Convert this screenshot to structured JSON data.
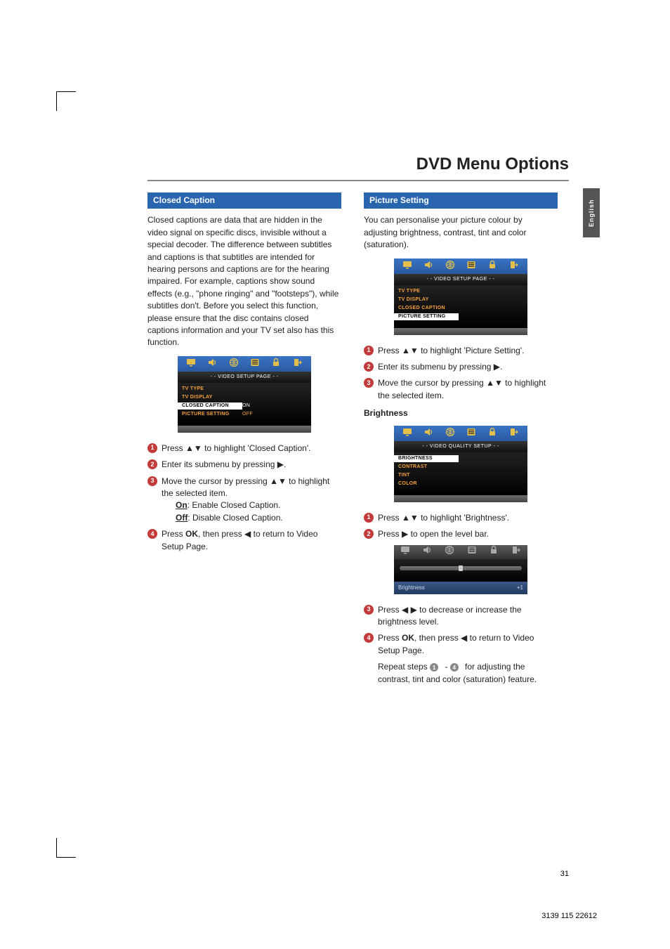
{
  "page": {
    "title": "DVD Menu Options",
    "side_tab": "English",
    "page_number": "31",
    "part_number": "3139 115 22612"
  },
  "colors": {
    "header_blue": "#2a66b0",
    "step_red": "#c23a3a",
    "step_gray": "#8a8a8a",
    "menu_orange": "#f7a23a",
    "icon_white": "#ffffff",
    "icon_gold": "#e4c04a"
  },
  "left": {
    "section_title": "Closed Caption",
    "intro": "Closed captions are data that are hidden in the video signal on specific discs, invisible without a special decoder. The difference between subtitles and captions is that subtitles are intended for hearing persons and captions are for the hearing impaired. For example, captions show sound effects (e.g., \"phone ringing\" and \"footsteps\"), while subtitles don't. Before you select this function, please ensure that the disc contains closed captions information and your TV set also has this function.",
    "menu": {
      "header": "- -   VIDEO  SETUP  PAGE   - -",
      "items": [
        {
          "left": "TV TYPE",
          "right": "",
          "style": "orange"
        },
        {
          "left": "TV DISPLAY",
          "right": "",
          "style": "orange"
        },
        {
          "left": "CLOSED CAPTION",
          "right": "ON",
          "style": "white"
        },
        {
          "left": "PICTURE SETTING",
          "right": "OFF",
          "style": "orange-right"
        }
      ]
    },
    "steps": [
      {
        "n": "1",
        "t": "Press ▲▼ to highlight 'Closed Caption'."
      },
      {
        "n": "2",
        "t": "Enter its submenu by pressing ▶."
      },
      {
        "n": "3",
        "t": "Move the cursor by pressing ▲▼ to highlight the selected item."
      },
      {
        "n": "4",
        "t_pre": "Press ",
        "bold1": "OK",
        "t_mid": ", then press ◀ to return to Video Setup Page."
      }
    ],
    "on_line_label": "On",
    "on_line_rest": ": Enable Closed Caption.",
    "off_line_label": "Off",
    "off_line_rest": ": Disable Closed Caption."
  },
  "right": {
    "section_title": "Picture Setting",
    "intro": "You can personalise your picture colour by adjusting brightness, contrast, tint and color (saturation).",
    "menu1": {
      "header": "- -   VIDEO  SETUP  PAGE   - -",
      "items": [
        {
          "left": "TV TYPE",
          "right": "",
          "style": "orange"
        },
        {
          "left": "TV DISPLAY",
          "right": "",
          "style": "orange"
        },
        {
          "left": "CLOSED CAPTION",
          "right": "",
          "style": "orange"
        },
        {
          "left": "PICTURE SETTING",
          "right": "",
          "style": "white"
        }
      ]
    },
    "steps1": [
      {
        "n": "1",
        "t": "Press ▲▼ to highlight 'Picture Setting'."
      },
      {
        "n": "2",
        "t": "Enter its submenu by pressing ▶."
      },
      {
        "n": "3",
        "t": "Move the cursor by pressing ▲▼ to highlight the selected item."
      }
    ],
    "brightness_heading": "Brightness",
    "menu2": {
      "header": "- -   VIDEO  QUALITY  SETUP   - -",
      "items": [
        {
          "left": "BRIGHTNESS",
          "right": "",
          "style": "white"
        },
        {
          "left": "CONTRAST",
          "right": "",
          "style": "orange"
        },
        {
          "left": "TINT",
          "right": "",
          "style": "orange"
        },
        {
          "left": "COLOR",
          "right": "",
          "style": "orange"
        }
      ]
    },
    "steps2": [
      {
        "n": "1",
        "t": "Press ▲▼ to highlight 'Brightness'."
      },
      {
        "n": "2",
        "t": "Press ▶ to open the level bar."
      }
    ],
    "slider": {
      "label_left": "Brightness",
      "label_right": "+1",
      "thumb_pct": 48
    },
    "steps3": [
      {
        "n": "3",
        "t": "Press ◀ ▶ to decrease or increase the brightness level."
      },
      {
        "n": "4",
        "t_pre": "Press ",
        "bold1": "OK",
        "t_mid": ", then press ◀ to return to Video Setup Page."
      }
    ],
    "repeat_line": "Repeat steps 1 - 4 for adjusting the contrast, tint and color (saturation) feature."
  },
  "icons": {
    "set": [
      "display",
      "speaker",
      "globe",
      "panel",
      "lock",
      "exit"
    ]
  }
}
